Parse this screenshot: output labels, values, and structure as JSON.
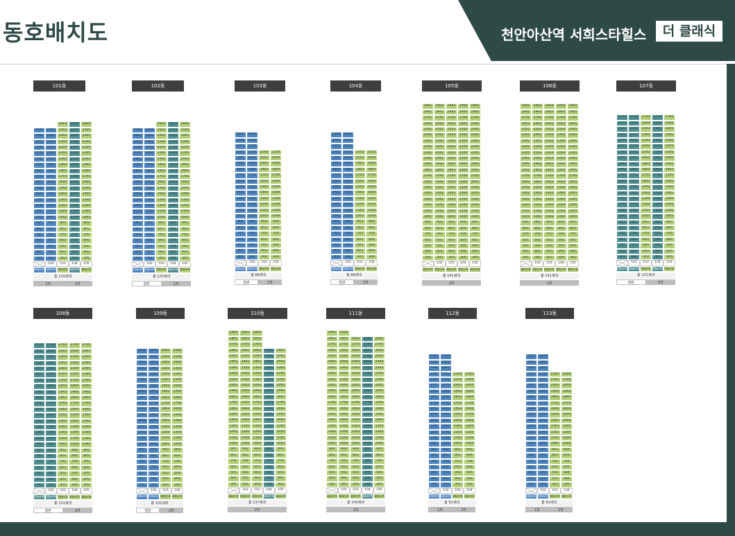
{
  "header": {
    "title": "동호배치도",
    "brand": "천안아산역 서희스타힐스",
    "badge": "더 클래식"
  },
  "colors": {
    "primary": "#2e4a47",
    "unit_blue": "#4f86c2",
    "unit_green": "#b3cf75",
    "unit_teal": "#4f8f92"
  },
  "buildings": [
    {
      "label": "101동",
      "type_labels": [
        "59m²A",
        "59m²A",
        "84m²A",
        "84m²A",
        "84m²A"
      ],
      "total": "총 120세대",
      "legend": [
        "2차",
        "1차"
      ]
    },
    {
      "label": "102동",
      "type_labels": [
        "59m²A",
        "59m²A",
        "84m²A",
        "84m²A",
        "84m²A"
      ],
      "total": "총 120세대",
      "legend": [
        "일반",
        "1차"
      ]
    },
    {
      "label": "103동",
      "type_labels": [
        "59m²A",
        "59m²A",
        "84m²A",
        "84m²A"
      ],
      "total": "총 88세대",
      "legend": [
        "일반",
        "2차"
      ]
    },
    {
      "label": "104동",
      "type_labels": [
        "59m²A",
        "59m²A",
        "84m²A",
        "84m²A"
      ],
      "total": "총 88세대",
      "legend": [
        "일반",
        "1차"
      ]
    },
    {
      "label": "105동",
      "type_labels": [
        "84m²A",
        "84m²A",
        "84m²A",
        "84m²A",
        "84m²A"
      ],
      "total": "총 141세대",
      "legend": [
        "1차"
      ]
    },
    {
      "label": "106동",
      "type_labels": [
        "84m²A",
        "84m²A",
        "84m²A",
        "84m²A",
        "84m²A"
      ],
      "total": "총 141세대",
      "legend": [
        "1차"
      ]
    },
    {
      "label": "107동",
      "type_labels": [
        "59m²A",
        "59m²A",
        "59m²A",
        "59m²A",
        "59m²A"
      ],
      "total": "총 131세대",
      "legend": [
        "일반",
        "2차"
      ]
    },
    {
      "label": "108동",
      "type_labels": [
        "59m²A",
        "59m²A",
        "59m²A",
        "84m²A",
        "84m²A"
      ],
      "total": "총 131세대",
      "legend": [
        "일반",
        "2차"
      ]
    },
    {
      "label": "109동",
      "type_labels": [
        "59m²A",
        "59m²A",
        "84m²A",
        "84m²A"
      ],
      "total": "총 101세대",
      "legend": [
        "일반",
        "2차"
      ]
    },
    {
      "label": "110동",
      "type_labels": [
        "84m²A",
        "84m²A",
        "84m²A",
        "84m²A",
        "84m²A"
      ],
      "total": "총 137세대",
      "legend": [
        "2차"
      ]
    },
    {
      "label": "111동",
      "type_labels": [
        "84m²A",
        "84m²A",
        "84m²A",
        "84m²A",
        "84m²A"
      ],
      "total": "총 140세대",
      "legend": [
        "1차"
      ]
    },
    {
      "label": "112동",
      "type_labels": [
        "59m²A",
        "59m²A",
        "84m²A",
        "84m²A"
      ],
      "total": "총 92세대",
      "legend": [
        "1차",
        "2차"
      ]
    },
    {
      "label": "113동",
      "type_labels": [
        "59m²A",
        "59m²A",
        "84m²A",
        "84m²A"
      ],
      "total": "총 92세대",
      "legend": [
        "1차",
        "2차"
      ]
    }
  ]
}
